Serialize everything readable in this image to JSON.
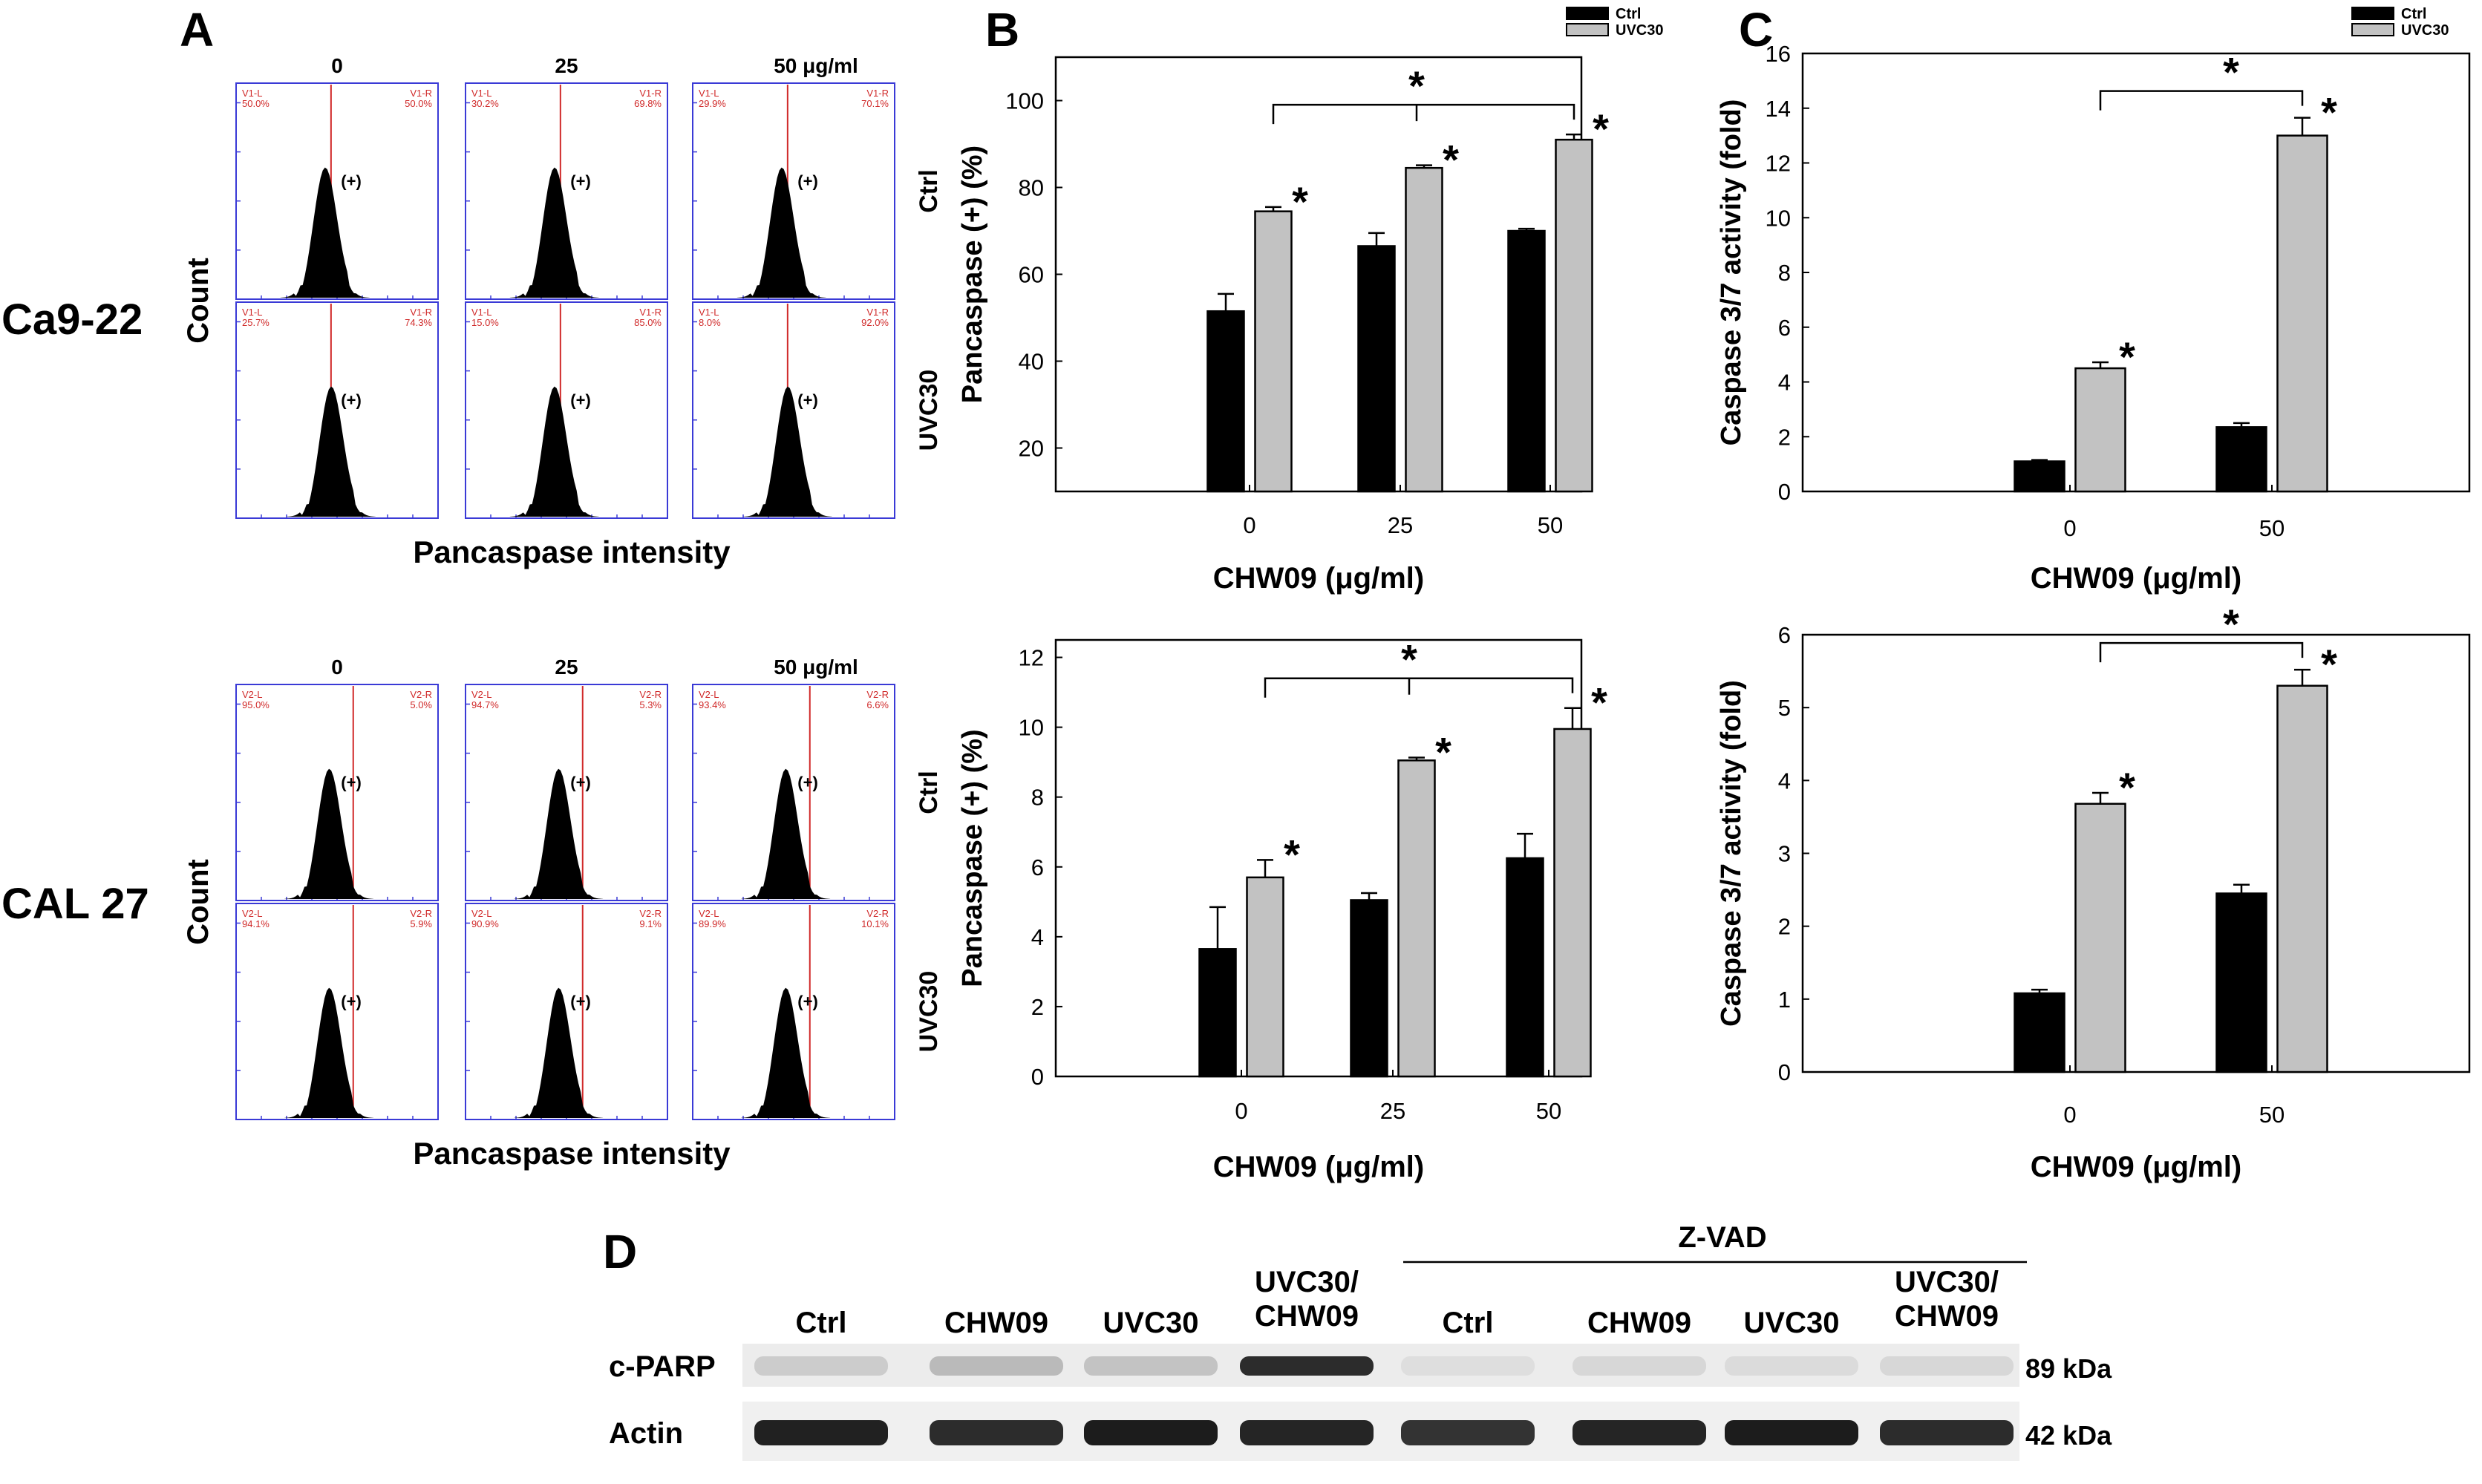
{
  "panel_labels": {
    "A": "A",
    "B": "B",
    "C": "C",
    "D": "D"
  },
  "colors": {
    "ctrl": "#000000",
    "uvc": "#c2c2c2",
    "flow_frame": "#3a3ad6",
    "flow_text": "#d02a2a",
    "gate": "#d02a2a",
    "axis": "#000000"
  },
  "panel_a": {
    "cell_lines": [
      "Ca9-22",
      "CAL 27"
    ],
    "dose_headers": [
      "0",
      "25",
      "50 μg/ml"
    ],
    "row_labels": [
      "Ctrl",
      "UVC30"
    ],
    "y_axis_label": "Count",
    "x_axis_label": "Pancaspase intensity",
    "positive_mark": "(+)",
    "histograms": [
      [
        [
          {
            "l_label": "V1-L",
            "r_label": "V1-R",
            "l_pct": "50.0%",
            "r_pct": "50.0%"
          },
          {
            "l_label": "V1-L",
            "r_label": "V1-R",
            "l_pct": "30.2%",
            "r_pct": "69.8%"
          },
          {
            "l_label": "V1-L",
            "r_label": "V1-R",
            "l_pct": "29.9%",
            "r_pct": "70.1%"
          }
        ],
        [
          {
            "l_label": "V1-L",
            "r_label": "V1-R",
            "l_pct": "25.7%",
            "r_pct": "74.3%"
          },
          {
            "l_label": "V1-L",
            "r_label": "V1-R",
            "l_pct": "15.0%",
            "r_pct": "85.0%"
          },
          {
            "l_label": "V1-L",
            "r_label": "V1-R",
            "l_pct": "8.0%",
            "r_pct": "92.0%"
          }
        ]
      ],
      [
        [
          {
            "l_label": "V2-L",
            "r_label": "V2-R",
            "l_pct": "95.0%",
            "r_pct": "5.0%"
          },
          {
            "l_label": "V2-L",
            "r_label": "V2-R",
            "l_pct": "94.7%",
            "r_pct": "5.3%"
          },
          {
            "l_label": "V2-L",
            "r_label": "V2-R",
            "l_pct": "93.4%",
            "r_pct": "6.6%"
          }
        ],
        [
          {
            "l_label": "V2-L",
            "r_label": "V2-R",
            "l_pct": "94.1%",
            "r_pct": "5.9%"
          },
          {
            "l_label": "V2-L",
            "r_label": "V2-R",
            "l_pct": "90.9%",
            "r_pct": "9.1%"
          },
          {
            "l_label": "V2-L",
            "r_label": "V2-R",
            "l_pct": "89.9%",
            "r_pct": "10.1%"
          }
        ]
      ]
    ]
  },
  "chart_data": [
    {
      "id": "B-top",
      "type": "bar",
      "categories": [
        "0",
        "25",
        "50"
      ],
      "xlabel": "CHW09 (μg/ml)",
      "ylabel": "Pancaspase (+) (%)",
      "ylim": [
        10,
        110
      ],
      "yticks": [
        20,
        40,
        60,
        80,
        100
      ],
      "series": [
        {
          "name": "Ctrl",
          "values": [
            51.5,
            66.5,
            70.0
          ],
          "errors": [
            4.0,
            3.0,
            0.5
          ]
        },
        {
          "name": "UVC30",
          "values": [
            74.5,
            84.5,
            91.0
          ],
          "errors": [
            1.0,
            0.6,
            1.2
          ]
        }
      ],
      "legend": [
        "Ctrl",
        "UVC30"
      ],
      "star_bars": [
        [
          1,
          0
        ],
        [
          1,
          1
        ],
        [
          1,
          2
        ]
      ],
      "bracket": [
        0,
        2
      ],
      "annotation": "*"
    },
    {
      "id": "C-top",
      "type": "bar",
      "categories": [
        "0",
        "50"
      ],
      "xlabel": "CHW09 (μg/ml)",
      "ylabel": "Caspase 3/7 activity (fold)",
      "ylim": [
        0,
        16
      ],
      "yticks": [
        0,
        2,
        4,
        6,
        8,
        10,
        12,
        14,
        16
      ],
      "series": [
        {
          "name": "Ctrl",
          "values": [
            1.1,
            2.35
          ],
          "errors": [
            0.05,
            0.15
          ]
        },
        {
          "name": "UVC30",
          "values": [
            4.5,
            13.0
          ],
          "errors": [
            0.22,
            0.65
          ]
        }
      ],
      "legend": [
        "Ctrl",
        "UVC30"
      ],
      "star_bars": [
        [
          1,
          0
        ],
        [
          1,
          1
        ]
      ],
      "bracket": [
        0,
        1
      ],
      "annotation": "*"
    },
    {
      "id": "B-bottom",
      "type": "bar",
      "categories": [
        "0",
        "25",
        "50"
      ],
      "xlabel": "CHW09 (μg/ml)",
      "ylabel": "Pancaspase (+) (%)",
      "ylim": [
        0,
        12.5
      ],
      "yticks": [
        0,
        2,
        4,
        6,
        8,
        10,
        12
      ],
      "series": [
        {
          "name": "Ctrl",
          "values": [
            3.65,
            5.05,
            6.25
          ],
          "errors": [
            1.2,
            0.2,
            0.7
          ]
        },
        {
          "name": "UVC30",
          "values": [
            5.7,
            9.05,
            9.95
          ],
          "errors": [
            0.5,
            0.08,
            0.6
          ]
        }
      ],
      "legend": [],
      "star_bars": [
        [
          1,
          0
        ],
        [
          1,
          1
        ],
        [
          1,
          2
        ]
      ],
      "bracket": [
        0,
        2
      ],
      "annotation": "*"
    },
    {
      "id": "C-bottom",
      "type": "bar",
      "categories": [
        "0",
        "50"
      ],
      "xlabel": "CHW09 (μg/ml)",
      "ylabel": "Caspase 3/7 activity (fold)",
      "ylim": [
        0,
        6
      ],
      "yticks": [
        0,
        1,
        2,
        3,
        4,
        5,
        6
      ],
      "series": [
        {
          "name": "Ctrl",
          "values": [
            1.08,
            2.45
          ],
          "errors": [
            0.05,
            0.12
          ]
        },
        {
          "name": "UVC30",
          "values": [
            3.68,
            5.3
          ],
          "errors": [
            0.15,
            0.22
          ]
        }
      ],
      "legend": [],
      "star_bars": [
        [
          1,
          0
        ],
        [
          1,
          1
        ]
      ],
      "bracket": [
        0,
        1
      ],
      "annotation": "*"
    }
  ],
  "panel_d": {
    "group_label": "Z-VAD",
    "lanes": [
      "Ctrl",
      "CHW09",
      "UVC30",
      "UVC30/\nCHW09",
      "Ctrl",
      "CHW09",
      "UVC30",
      "UVC30/\nCHW09"
    ],
    "rows": [
      {
        "name": "c-PARP",
        "size": "89 kDa",
        "intensity": [
          0.14,
          0.22,
          0.18,
          0.85,
          0.06,
          0.09,
          0.07,
          0.09
        ]
      },
      {
        "name": "Actin",
        "size": "42 kDa",
        "intensity": [
          0.9,
          0.85,
          0.92,
          0.88,
          0.82,
          0.88,
          0.92,
          0.85
        ]
      }
    ]
  }
}
